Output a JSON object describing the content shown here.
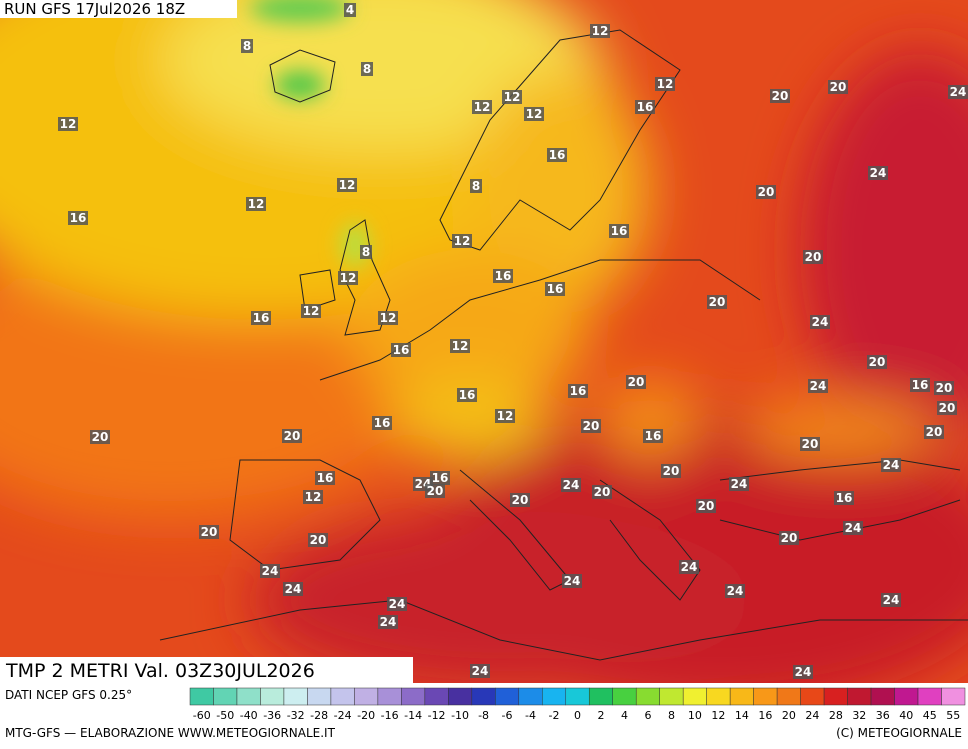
{
  "header": {
    "run": "RUN GFS 17Jul2026 18Z"
  },
  "map": {
    "labels": [
      4,
      8,
      8,
      12,
      12,
      12,
      12,
      12,
      16,
      20,
      20,
      24,
      12,
      16,
      24,
      12,
      8,
      20,
      12,
      16,
      16,
      12,
      8,
      20,
      12,
      16,
      16,
      20,
      16,
      12,
      12,
      24,
      16,
      12,
      20,
      20,
      16,
      24,
      16,
      20,
      20,
      16,
      12,
      16,
      20,
      20,
      20,
      16,
      20,
      20,
      24,
      20,
      16,
      24,
      16,
      20,
      24,
      20,
      24,
      12,
      20,
      16,
      20,
      20,
      24,
      20,
      20,
      24,
      24,
      24,
      24,
      24,
      24,
      24,
      24,
      24,
      24
    ]
  },
  "footer": {
    "title": "TMP 2 METRI Val. 03Z30JUL2026",
    "source": "DATI NCEP GFS 0.25°",
    "credit": "MTG-GFS — ELABORAZIONE WWW.METEOGIORNALE.IT",
    "copyright": "(C) METEOGIORNALE"
  },
  "scale": {
    "labels": [
      -60,
      -50,
      -40,
      -36,
      -32,
      -28,
      -24,
      -20,
      -16,
      -14,
      -12,
      -10,
      -8,
      -6,
      -4,
      -2,
      0,
      2,
      4,
      6,
      8,
      10,
      12,
      14,
      16,
      20,
      24,
      28,
      32,
      36,
      40,
      45,
      55
    ],
    "colors": [
      "#3fc9a3",
      "#62d4b4",
      "#8fe0c9",
      "#b9ecdc",
      "#cdeef0",
      "#c8d8f0",
      "#c4c4ec",
      "#c0b0e4",
      "#a890d8",
      "#8c6cc8",
      "#6a48b4",
      "#4830a0",
      "#2838b8",
      "#2060d8",
      "#1c8ce8",
      "#18b4f0",
      "#18c8d8",
      "#20c060",
      "#48d040",
      "#88dc30",
      "#c0e830",
      "#f0f030",
      "#f8d820",
      "#f8b818",
      "#f89818",
      "#f07818",
      "#e84818",
      "#d82020",
      "#c01830",
      "#b01050",
      "#c01890",
      "#e040c0",
      "#f090e0"
    ]
  }
}
